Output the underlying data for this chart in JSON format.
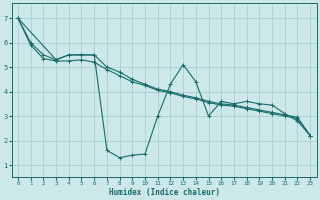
{
  "xlabel": "Humidex (Indice chaleur)",
  "bg_color": "#cce8e8",
  "grid_color": "#aacece",
  "line_color": "#1a6a6a",
  "xlim": [
    -0.5,
    23.5
  ],
  "ylim": [
    0.5,
    7.6
  ],
  "xticks": [
    0,
    1,
    2,
    3,
    4,
    5,
    6,
    7,
    8,
    9,
    10,
    11,
    12,
    13,
    14,
    15,
    16,
    17,
    18,
    19,
    20,
    21,
    22,
    23
  ],
  "yticks": [
    1,
    2,
    3,
    4,
    5,
    6,
    7
  ],
  "line1_x": [
    0,
    1,
    2,
    3,
    4,
    5,
    6,
    7,
    8,
    9,
    10,
    11,
    12,
    13,
    14,
    15,
    16,
    17,
    18,
    19,
    20,
    21,
    22,
    23
  ],
  "line1_y": [
    7.0,
    6.0,
    5.5,
    5.3,
    5.5,
    5.5,
    5.5,
    5.0,
    4.8,
    4.5,
    4.3,
    4.1,
    4.0,
    3.85,
    3.75,
    3.6,
    3.5,
    3.45,
    3.35,
    3.25,
    3.15,
    3.05,
    2.95,
    2.2
  ],
  "line2_x": [
    0,
    1,
    2,
    3,
    4,
    5,
    6,
    7,
    8,
    9,
    10,
    11,
    12,
    13,
    14,
    15,
    16,
    17,
    18,
    19,
    20,
    21,
    22,
    23
  ],
  "line2_y": [
    7.0,
    5.9,
    5.35,
    5.25,
    5.25,
    5.3,
    5.2,
    4.9,
    4.65,
    4.4,
    4.25,
    4.05,
    3.95,
    3.8,
    3.7,
    3.55,
    3.45,
    3.4,
    3.3,
    3.2,
    3.1,
    3.0,
    2.9,
    2.2
  ],
  "line3_x": [
    0,
    3,
    4,
    5,
    6,
    7,
    8,
    9,
    10,
    11,
    12,
    13,
    14,
    15,
    16,
    17,
    18,
    19,
    20,
    21,
    22,
    23
  ],
  "line3_y": [
    7.0,
    5.3,
    5.5,
    5.5,
    5.5,
    1.6,
    1.3,
    1.4,
    1.45,
    3.0,
    4.3,
    5.1,
    4.4,
    3.0,
    3.6,
    3.5,
    3.6,
    3.5,
    3.45,
    3.1,
    2.8,
    2.2
  ]
}
